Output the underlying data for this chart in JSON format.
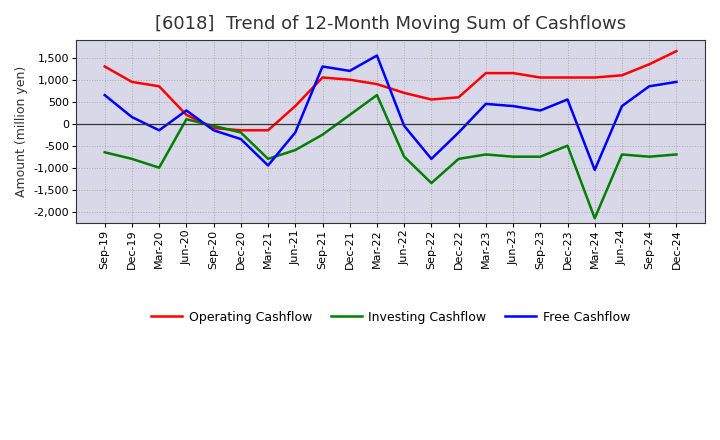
{
  "title": "[6018]  Trend of 12-Month Moving Sum of Cashflows",
  "ylabel": "Amount (million yen)",
  "x_labels": [
    "Sep-19",
    "Dec-19",
    "Mar-20",
    "Jun-20",
    "Sep-20",
    "Dec-20",
    "Mar-21",
    "Jun-21",
    "Sep-21",
    "Dec-21",
    "Mar-22",
    "Jun-22",
    "Sep-22",
    "Dec-22",
    "Mar-23",
    "Jun-23",
    "Sep-23",
    "Dec-23",
    "Mar-24",
    "Jun-24",
    "Sep-24",
    "Dec-24"
  ],
  "operating": [
    1300,
    950,
    850,
    200,
    -100,
    -150,
    -150,
    400,
    1050,
    1000,
    900,
    700,
    550,
    600,
    1150,
    1150,
    1050,
    1050,
    1050,
    1100,
    1350,
    1650
  ],
  "investing": [
    -650,
    -800,
    -1000,
    100,
    -50,
    -200,
    -800,
    -600,
    -250,
    200,
    650,
    -750,
    -1350,
    -800,
    -700,
    -750,
    -750,
    -500,
    -2150,
    -700,
    -750,
    -700
  ],
  "free": [
    650,
    150,
    -150,
    300,
    -150,
    -350,
    -950,
    -200,
    1300,
    1200,
    1550,
    -50,
    -800,
    -200,
    450,
    400,
    300,
    550,
    -1050,
    400,
    850,
    950
  ],
  "ylim": [
    -2250,
    1900
  ],
  "yticks": [
    -2000,
    -1500,
    -1000,
    -500,
    0,
    500,
    1000,
    1500
  ],
  "operating_color": "#ff0000",
  "investing_color": "#008000",
  "free_color": "#0000ff",
  "bg_color": "#ffffff",
  "plot_bg_color": "#d8d8e8",
  "grid_color": "#aaaaaa",
  "linewidth": 1.8,
  "title_fontsize": 13,
  "label_fontsize": 9,
  "tick_fontsize": 8,
  "legend_fontsize": 9
}
